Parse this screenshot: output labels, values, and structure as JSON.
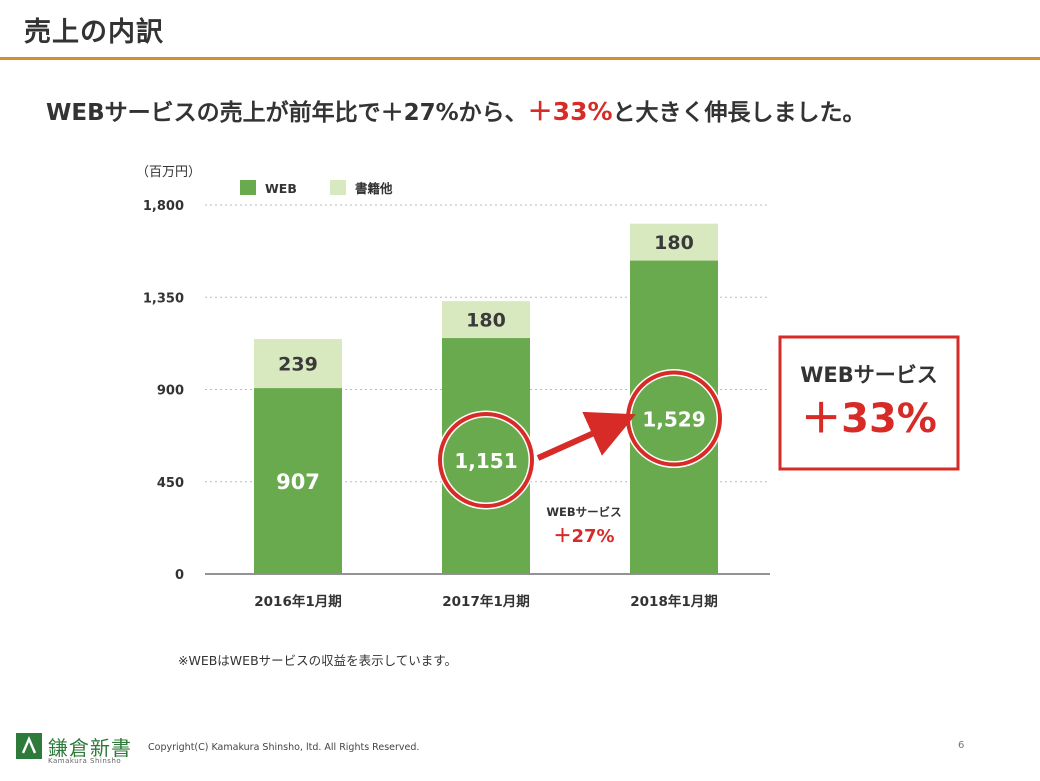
{
  "slide": {
    "title": "売上の内訳",
    "headline_pre": "WEBサービスの売上が前年比で＋27%から、",
    "headline_highlight": "＋33%",
    "headline_post": "と大きく伸長しました。",
    "note": "※WEBはWEBサービスの収益を表示しています。",
    "copyright": "Copyright(C) Kamakura Shinsho, ltd. All Rights Reserved.",
    "page_number": "6",
    "logo_name": "鎌倉新書",
    "logo_sub": "Kamakura Shinsho"
  },
  "colors": {
    "web": "#6aaa4e",
    "books": "#d8e8bf",
    "accent": "#d62b27",
    "rule": "#d98c2b"
  },
  "chart_data": {
    "type": "bar",
    "stacked": true,
    "unit_label": "（百万円）",
    "categories": [
      "2016年1月期",
      "2017年1月期",
      "2018年1月期"
    ],
    "series": [
      {
        "name": "WEB",
        "values": [
          907,
          1151,
          1529
        ],
        "labels": [
          "907",
          "1,151",
          "1,529"
        ]
      },
      {
        "name": "書籍他",
        "values": [
          239,
          180,
          180
        ],
        "labels": [
          "239",
          "180",
          "180"
        ]
      }
    ],
    "ylim": [
      0,
      1800
    ],
    "yticks": [
      0,
      450,
      900,
      1350,
      1800
    ],
    "ytick_labels": [
      "0",
      "450",
      "900",
      "1,350",
      "1,800"
    ],
    "grid": true,
    "legend_position": "top-left",
    "callout_small": {
      "label": "WEBサービス",
      "value": "＋27%"
    },
    "callout_big": {
      "label": "WEBサービス",
      "value": "＋33%"
    }
  }
}
